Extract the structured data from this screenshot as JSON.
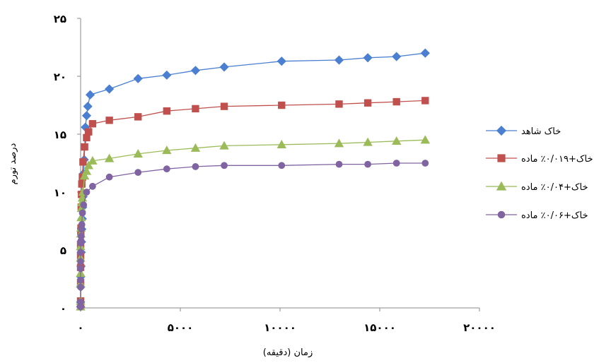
{
  "chart_data": {
    "type": "line",
    "title": "",
    "xlabel": "(زمان (دقیقه",
    "ylabel": "درصد تورم",
    "xlim": [
      0,
      20000
    ],
    "ylim": [
      0,
      25
    ],
    "x_ticks": [
      "۰",
      "۵۰۰۰",
      "۱۰۰۰۰",
      "۱۵۰۰۰",
      "۲۰۰۰۰"
    ],
    "y_ticks": [
      "۰",
      "۵",
      "۱۰",
      "۱۵",
      "۲۰",
      "۲۵"
    ],
    "grid": false,
    "legend_position": "right",
    "series": [
      {
        "name": "خاک شاهد",
        "color": "#4a7fd1",
        "marker": "diamond",
        "points": [
          [
            0,
            0.1
          ],
          [
            0,
            0.5
          ],
          [
            5,
            1.8
          ],
          [
            10,
            2.7
          ],
          [
            20,
            3.6
          ],
          [
            30,
            4.8
          ],
          [
            45,
            5.7
          ],
          [
            60,
            6.8
          ],
          [
            80,
            7.7
          ],
          [
            100,
            8.7
          ],
          [
            120,
            9.6
          ],
          [
            150,
            11.6
          ],
          [
            180,
            12.8
          ],
          [
            240,
            15.6
          ],
          [
            300,
            16.6
          ],
          [
            360,
            17.4
          ],
          [
            480,
            18.4
          ],
          [
            1440,
            18.9
          ],
          [
            2880,
            19.8
          ],
          [
            4320,
            20.1
          ],
          [
            5760,
            20.5
          ],
          [
            7200,
            20.8
          ],
          [
            10080,
            21.3
          ],
          [
            12960,
            21.4
          ],
          [
            14400,
            21.6
          ],
          [
            15840,
            21.7
          ],
          [
            17280,
            22.0
          ]
        ]
      },
      {
        "name": "خاک+۰/۰۱۹٪ ماده",
        "color": "#c0504d",
        "marker": "square",
        "points": [
          [
            0,
            0.1
          ],
          [
            0,
            0.6
          ],
          [
            0,
            2.2
          ],
          [
            0,
            3.5
          ],
          [
            0,
            4.5
          ],
          [
            0,
            5.5
          ],
          [
            10,
            6.6
          ],
          [
            20,
            6.9
          ],
          [
            30,
            8.7
          ],
          [
            45,
            9.8
          ],
          [
            60,
            10.7
          ],
          [
            90,
            11.3
          ],
          [
            120,
            12.6
          ],
          [
            200,
            13.9
          ],
          [
            300,
            14.7
          ],
          [
            400,
            15.2
          ],
          [
            600,
            15.9
          ],
          [
            1440,
            16.2
          ],
          [
            2880,
            16.5
          ],
          [
            4320,
            17.0
          ],
          [
            5760,
            17.2
          ],
          [
            7200,
            17.4
          ],
          [
            10080,
            17.5
          ],
          [
            12960,
            17.6
          ],
          [
            14400,
            17.7
          ],
          [
            15840,
            17.8
          ],
          [
            17280,
            17.9
          ]
        ]
      },
      {
        "name": "خاک+۰/۰۴٪ ماده",
        "color": "#9bbb59",
        "marker": "triangle",
        "points": [
          [
            0,
            0.1
          ],
          [
            0,
            0.6
          ],
          [
            0,
            2.1
          ],
          [
            0,
            3.0
          ],
          [
            0,
            4.3
          ],
          [
            0,
            5.3
          ],
          [
            10,
            6.4
          ],
          [
            20,
            6.9
          ],
          [
            30,
            7.8
          ],
          [
            45,
            8.6
          ],
          [
            60,
            9.1
          ],
          [
            90,
            9.5
          ],
          [
            120,
            10.0
          ],
          [
            200,
            11.4
          ],
          [
            300,
            11.8
          ],
          [
            400,
            12.3
          ],
          [
            600,
            12.7
          ],
          [
            1440,
            12.9
          ],
          [
            2880,
            13.3
          ],
          [
            4320,
            13.6
          ],
          [
            5760,
            13.8
          ],
          [
            7200,
            14.0
          ],
          [
            10080,
            14.1
          ],
          [
            12960,
            14.2
          ],
          [
            14400,
            14.3
          ],
          [
            15840,
            14.4
          ],
          [
            17280,
            14.5
          ]
        ]
      },
      {
        "name": "خاک+۰/۰۶٪ ماده",
        "color": "#8064a2",
        "marker": "circle",
        "points": [
          [
            0,
            0.1
          ],
          [
            0,
            0.5
          ],
          [
            0,
            1.8
          ],
          [
            0,
            2.4
          ],
          [
            0,
            3.4
          ],
          [
            0,
            4.0
          ],
          [
            0,
            4.8
          ],
          [
            10,
            5.6
          ],
          [
            20,
            5.8
          ],
          [
            30,
            6.2
          ],
          [
            45,
            6.8
          ],
          [
            60,
            7.2
          ],
          [
            90,
            8.2
          ],
          [
            150,
            8.9
          ],
          [
            300,
            10.0
          ],
          [
            600,
            10.5
          ],
          [
            1440,
            11.3
          ],
          [
            2880,
            11.7
          ],
          [
            4320,
            12.0
          ],
          [
            5760,
            12.2
          ],
          [
            7200,
            12.3
          ],
          [
            10080,
            12.3
          ],
          [
            12960,
            12.4
          ],
          [
            14400,
            12.4
          ],
          [
            15840,
            12.5
          ],
          [
            17280,
            12.5
          ]
        ]
      }
    ]
  }
}
